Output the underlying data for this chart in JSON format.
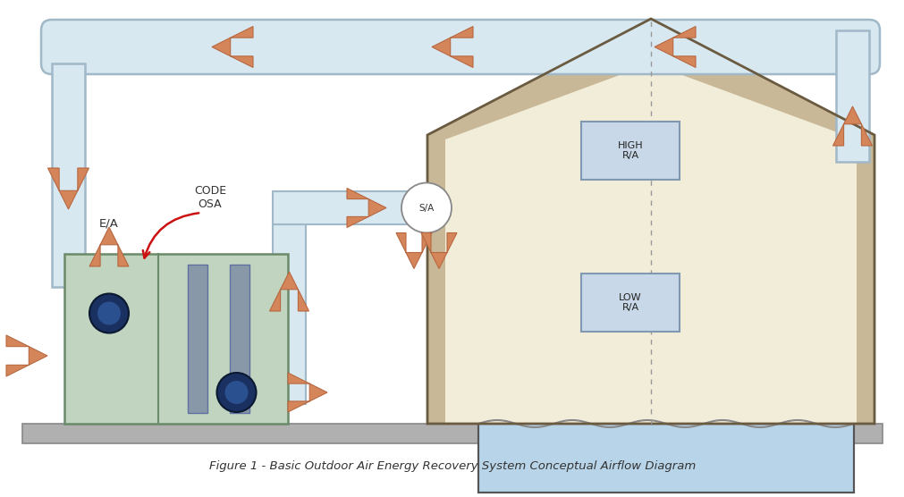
{
  "bg_color": "#ffffff",
  "duct_fill": "#d8e8f0",
  "duct_stroke": "#a0b8c8",
  "arrow_color": "#d4855a",
  "arrow_outline": "#b86840",
  "unit_fill": "#c0d4c0",
  "unit_stroke": "#6a8a6a",
  "house_fill": "#f2edd8",
  "house_wall_color": "#c8b898",
  "pool_fill": "#b8d4e8",
  "pool_stroke": "#606060",
  "ground_fill": "#b0b0b0",
  "ground_stroke": "#888888",
  "label_high_ra": "HIGH\nR/A",
  "label_low_ra": "LOW\nR/A",
  "label_sa": "S/A",
  "label_ea": "E/A",
  "label_code_osa": "CODE\nOSA",
  "caption": "Figure 1 - Basic Outdoor Air Energy Recovery System Conceptual Airflow Diagram",
  "ra_box_fill": "#c8d8e8",
  "ra_box_stroke": "#8098b0",
  "fan_color": "#1a3060",
  "fan_inner": "#2a5090",
  "filter_fill": "#8898a8",
  "filter_stroke": "#6070a0"
}
